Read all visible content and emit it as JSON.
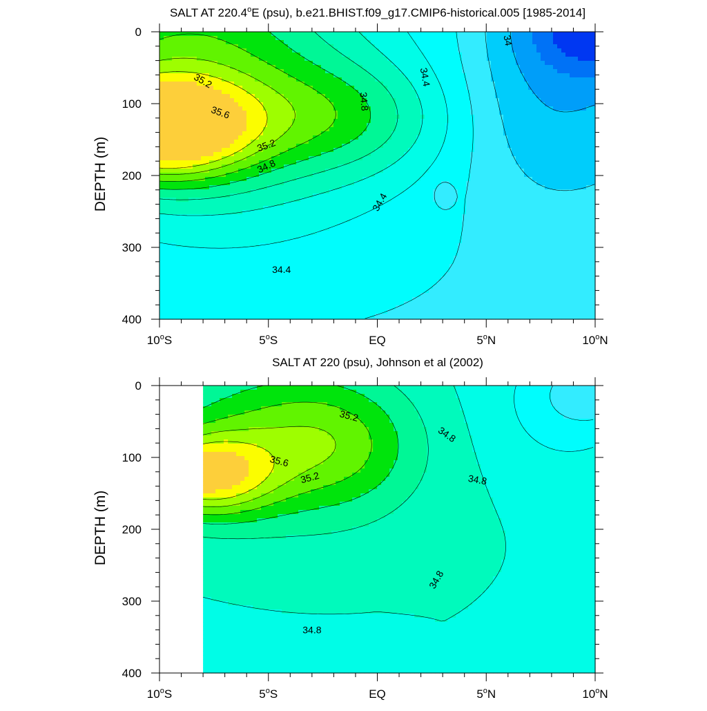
{
  "chart_data": [
    {
      "type": "contour",
      "title": "SALT AT 220.4",
      "title_sup": "o",
      "title_rest": "E (psu), b.e21.BHIST.f09_g17.CMIP6-historical.005 [1985-2014]",
      "ylabel": "DEPTH (m)",
      "x_ticks": [
        {
          "base": "10",
          "sup": "o",
          "rest": "S",
          "lat": -10
        },
        {
          "base": "5",
          "sup": "o",
          "rest": "S",
          "lat": -5
        },
        {
          "base": "EQ",
          "sup": "",
          "rest": "",
          "lat": 0
        },
        {
          "base": "5",
          "sup": "o",
          "rest": "N",
          "lat": 5
        },
        {
          "base": "10",
          "sup": "o",
          "rest": "N",
          "lat": 10
        }
      ],
      "y_ticks": [
        "0",
        "100",
        "200",
        "300",
        "400"
      ],
      "xlim": [
        -10,
        10
      ],
      "ylim": [
        0,
        400
      ],
      "data_xmin": -10,
      "levels": [
        34.0,
        34.2,
        34.4,
        34.6,
        34.8,
        35.0,
        35.2,
        35.4,
        35.6,
        35.8
      ],
      "contour_labels": [
        {
          "text": "35.2",
          "lat": -8.0,
          "depth": 68,
          "angle": 30
        },
        {
          "text": "35.6",
          "lat": -7.2,
          "depth": 112,
          "angle": 20
        },
        {
          "text": "35.2",
          "lat": -5.1,
          "depth": 158,
          "angle": -20
        },
        {
          "text": "34.8",
          "lat": -5.1,
          "depth": 187,
          "angle": -25
        },
        {
          "text": "34.8",
          "lat": -0.6,
          "depth": 97,
          "angle": 85
        },
        {
          "text": "34.4",
          "lat": 2.2,
          "depth": 63,
          "angle": 80
        },
        {
          "text": "34.4",
          "lat": 0.1,
          "depth": 237,
          "angle": -60
        },
        {
          "text": "34",
          "lat": 6.0,
          "depth": 12,
          "angle": 80
        },
        {
          "text": "34.4",
          "lat": -4.4,
          "depth": 331,
          "angle": 0
        }
      ]
    },
    {
      "type": "contour",
      "title": "SALT AT 220 (psu), Johnson et al (2002)",
      "title_sup": "",
      "title_rest": "",
      "ylabel": "DEPTH (m)",
      "x_ticks": [
        {
          "base": "10",
          "sup": "o",
          "rest": "S",
          "lat": -10
        },
        {
          "base": "5",
          "sup": "o",
          "rest": "S",
          "lat": -5
        },
        {
          "base": "EQ",
          "sup": "",
          "rest": "",
          "lat": 0
        },
        {
          "base": "5",
          "sup": "o",
          "rest": "N",
          "lat": 5
        },
        {
          "base": "10",
          "sup": "o",
          "rest": "N",
          "lat": 10
        }
      ],
      "y_ticks": [
        "0",
        "100",
        "200",
        "300",
        "400"
      ],
      "xlim": [
        -10,
        10
      ],
      "ylim": [
        0,
        400
      ],
      "data_xmin": -8.0,
      "levels": [
        34.0,
        34.2,
        34.4,
        34.6,
        34.8,
        35.0,
        35.2,
        35.4,
        35.6,
        35.8
      ],
      "contour_labels": [
        {
          "text": "35.2",
          "lat": -1.3,
          "depth": 42,
          "angle": 15
        },
        {
          "text": "35.6",
          "lat": -4.5,
          "depth": 105,
          "angle": 15
        },
        {
          "text": "35.2",
          "lat": -3.1,
          "depth": 128,
          "angle": -15
        },
        {
          "text": "34.8",
          "lat": 3.2,
          "depth": 68,
          "angle": 35
        },
        {
          "text": "34.8",
          "lat": 4.6,
          "depth": 131,
          "angle": 10
        },
        {
          "text": "34.8",
          "lat": 2.7,
          "depth": 270,
          "angle": -60
        },
        {
          "text": "34.8",
          "lat": -3.0,
          "depth": 340,
          "angle": 0
        }
      ]
    }
  ]
}
